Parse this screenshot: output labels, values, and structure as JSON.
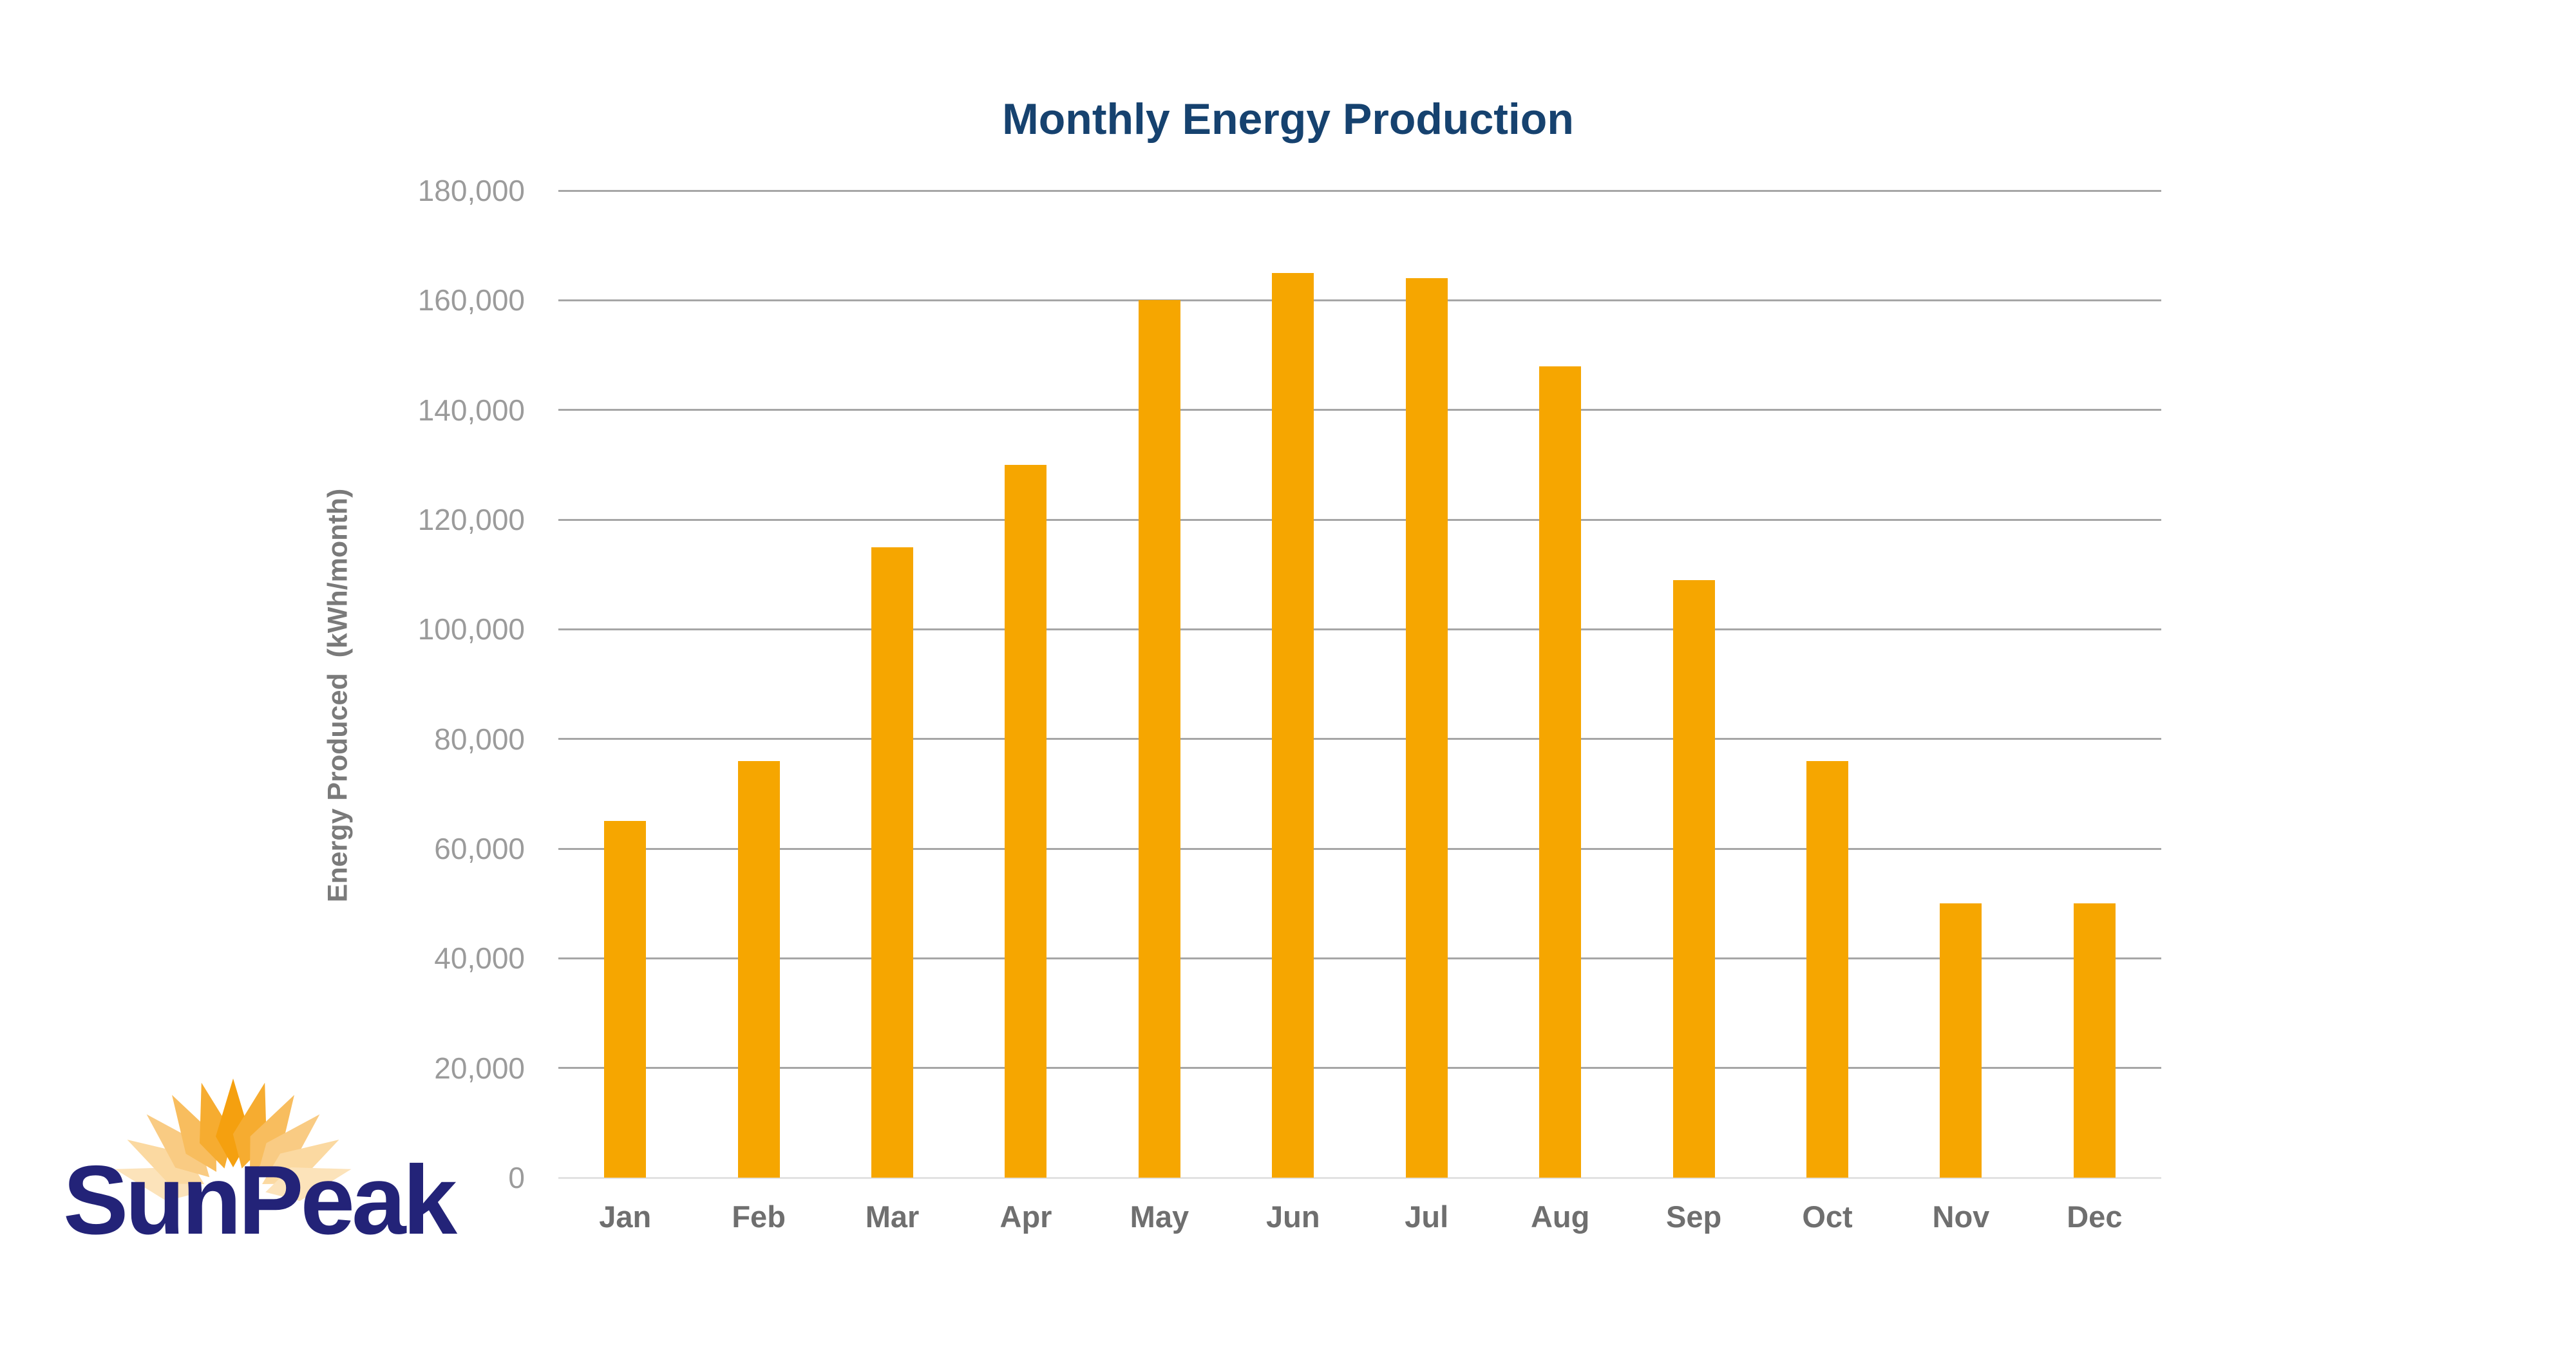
{
  "logo": {
    "text": "SunPeak",
    "text_color": "#232378",
    "petal_colors_by_ring": [
      "#F5A00F",
      "#F6AC30",
      "#F8BD5E",
      "#F9CB83",
      "#FBD9A1",
      "#FCE3BA"
    ]
  },
  "chart_data": {
    "type": "bar",
    "title": "Monthly Energy Production",
    "categories": [
      "Jan",
      "Feb",
      "Mar",
      "Apr",
      "May",
      "Jun",
      "Jul",
      "Aug",
      "Sep",
      "Oct",
      "Nov",
      "Dec"
    ],
    "values": [
      65000,
      76000,
      115000,
      130000,
      160000,
      165000,
      164000,
      148000,
      109000,
      76000,
      50000,
      50000
    ],
    "xlabel": "",
    "ylabel": "Energy Produced  (kWh/month)",
    "ylim": [
      0,
      180000
    ],
    "ytick_step": 20000,
    "ytick_labels": [
      "0",
      "20,000",
      "40,000",
      "60,000",
      "80,000",
      "100,000",
      "120,000",
      "140,000",
      "160,000",
      "180,000"
    ],
    "grid": true,
    "legend_position": "none",
    "colors": {
      "bar": "#F6A600",
      "title": "#16426F",
      "gridline": "#A6A6A6",
      "baseline": "#E2E2E2",
      "ytick_text": "#9B9B9B",
      "xtick_text": "#6F6F6F",
      "ylabel_text": "#7A7A7A"
    }
  }
}
